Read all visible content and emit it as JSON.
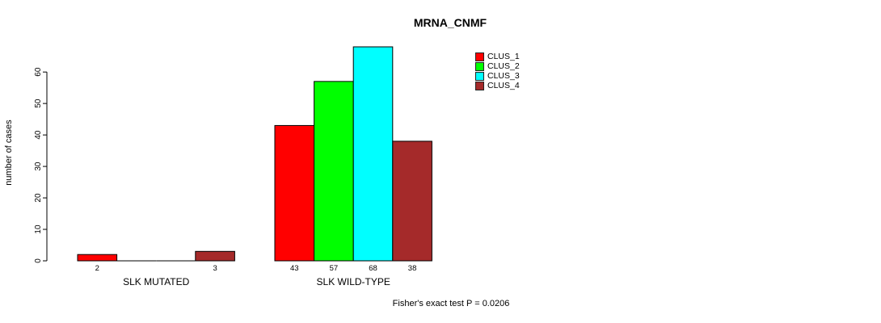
{
  "chart_data": {
    "type": "bar",
    "title": "MRNA_CNMF",
    "ylabel": "number of cases",
    "ylim": [
      0,
      68
    ],
    "yticks": [
      0,
      10,
      20,
      30,
      40,
      50,
      60
    ],
    "grid": false,
    "legend_position": "inside-top-right",
    "categories": [
      "SLK MUTATED",
      "SLK WILD-TYPE"
    ],
    "series": [
      {
        "name": "CLUS_1",
        "color": "#FF0000",
        "values": [
          2,
          43
        ]
      },
      {
        "name": "CLUS_2",
        "color": "#00FF00",
        "values": [
          0,
          57
        ]
      },
      {
        "name": "CLUS_3",
        "color": "#00FFFF",
        "values": [
          0,
          68
        ]
      },
      {
        "name": "CLUS_4",
        "color": "#A52A2A",
        "values": [
          3,
          38
        ]
      }
    ],
    "bar_value_labels": [
      "2",
      "3",
      "43",
      "57",
      "68",
      "38"
    ],
    "value_label_rule": "value labels shown under bars only when value > 0",
    "footnote": "Fisher's exact test P = 0.0206"
  },
  "page": {
    "background": "#FFFFFF",
    "text_color": "#000000"
  }
}
